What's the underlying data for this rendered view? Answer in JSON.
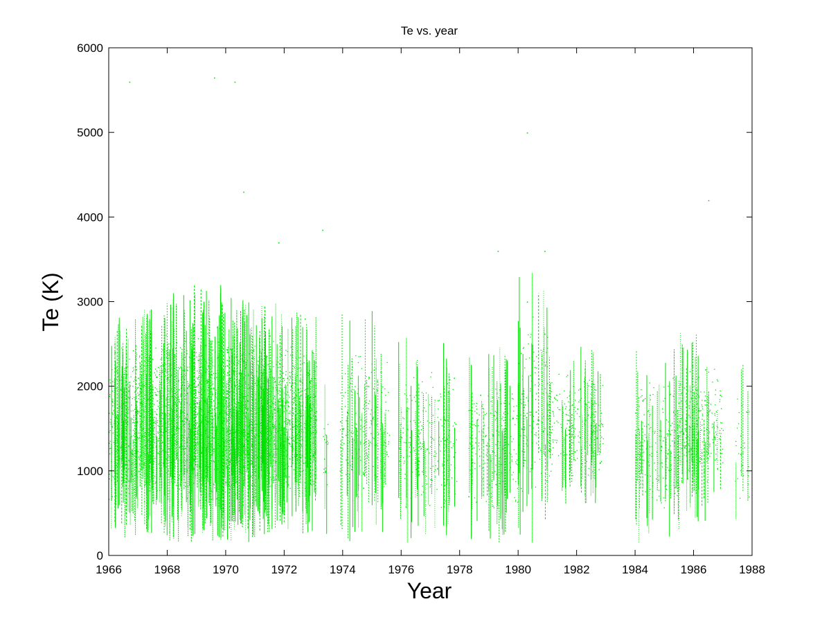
{
  "chart_data": {
    "type": "scatter",
    "title": "Te vs. year",
    "xlabel": "Year",
    "ylabel": "Te (K)",
    "xlim": [
      1966,
      1988
    ],
    "ylim": [
      0,
      6000
    ],
    "xticks": [
      "1966",
      "1968",
      "1970",
      "1972",
      "1974",
      "1976",
      "1978",
      "1980",
      "1982",
      "1984",
      "1986",
      "1988"
    ],
    "yticks": [
      "0",
      "1000",
      "2000",
      "3000",
      "4000",
      "5000",
      "6000"
    ],
    "grid": false,
    "legend": "none",
    "marker_color": "#00e000",
    "series": [
      {
        "values": [
          [
            1966.2,
            2400
          ],
          [
            1966.5,
            1800
          ],
          [
            1966.8,
            1200
          ],
          [
            1967.0,
            2100
          ],
          [
            1967.3,
            1500
          ],
          [
            1967.6,
            1900
          ],
          [
            1967.9,
            1000
          ],
          [
            1968.2,
            2200
          ],
          [
            1968.5,
            1600
          ],
          [
            1968.8,
            2500
          ],
          [
            1969.1,
            900
          ],
          [
            1969.4,
            1700
          ],
          [
            1969.7,
            2700
          ],
          [
            1970.0,
            1300
          ],
          [
            1970.3,
            2000
          ],
          [
            1970.6,
            2300
          ],
          [
            1970.9,
            1100
          ],
          [
            1971.2,
            1800
          ],
          [
            1971.5,
            2600
          ],
          [
            1971.8,
            1400
          ],
          [
            1972.1,
            2100
          ],
          [
            1972.4,
            1200
          ],
          [
            1972.7,
            2800
          ],
          [
            1973.0,
            1600
          ],
          [
            1973.4,
            1000
          ],
          [
            1974.0,
            1500
          ],
          [
            1974.3,
            2300
          ],
          [
            1974.7,
            800
          ],
          [
            1975.0,
            1400
          ],
          [
            1975.5,
            1200
          ],
          [
            1976.0,
            1400
          ],
          [
            1976.5,
            1900
          ],
          [
            1977.0,
            900
          ],
          [
            1977.5,
            1600
          ],
          [
            1977.8,
            2100
          ],
          [
            1978.3,
            700
          ],
          [
            1978.7,
            1900
          ],
          [
            1979.0,
            1300
          ],
          [
            1979.4,
            1800
          ],
          [
            1979.7,
            1100
          ],
          [
            1980.2,
            1500
          ],
          [
            1980.3,
            3000
          ],
          [
            1980.6,
            1700
          ],
          [
            1980.9,
            1200
          ],
          [
            1981.3,
            1900
          ],
          [
            1981.7,
            1600
          ],
          [
            1982.1,
            1400
          ],
          [
            1982.5,
            1800
          ],
          [
            1982.8,
            1100
          ],
          [
            1984.1,
            1500
          ],
          [
            1984.5,
            1900
          ],
          [
            1984.9,
            1100
          ],
          [
            1985.3,
            1700
          ],
          [
            1985.7,
            1300
          ],
          [
            1986.1,
            1600
          ],
          [
            1986.4,
            2200
          ],
          [
            1986.7,
            1400
          ],
          [
            1986.9,
            1900
          ],
          [
            1987.6,
            1200
          ],
          [
            1987.8,
            1700
          ],
          [
            1966.7,
            5600
          ],
          [
            1969.6,
            5650
          ],
          [
            1970.3,
            5600
          ],
          [
            1970.6,
            4300
          ],
          [
            1980.3,
            5000
          ],
          [
            1986.5,
            4200
          ],
          [
            1973.3,
            3850
          ],
          [
            1971.8,
            3700
          ],
          [
            1979.3,
            3600
          ],
          [
            1980.9,
            3600
          ]
        ]
      }
    ],
    "bands": [
      {
        "x0": 1966.0,
        "x1": 1966.9,
        "low": 200,
        "high": 2900,
        "density": 1.0
      },
      {
        "x0": 1966.9,
        "x1": 1967.8,
        "low": 200,
        "high": 3000,
        "density": 1.2
      },
      {
        "x0": 1967.8,
        "x1": 1968.9,
        "low": 150,
        "high": 3100,
        "density": 1.4
      },
      {
        "x0": 1968.9,
        "x1": 1969.9,
        "low": 150,
        "high": 3200,
        "density": 1.6
      },
      {
        "x0": 1969.9,
        "x1": 1970.9,
        "low": 150,
        "high": 3100,
        "density": 1.8
      },
      {
        "x0": 1970.9,
        "x1": 1971.9,
        "low": 200,
        "high": 3000,
        "density": 1.5
      },
      {
        "x0": 1971.9,
        "x1": 1973.1,
        "low": 250,
        "high": 2950,
        "density": 1.3
      },
      {
        "x0": 1973.3,
        "x1": 1973.5,
        "low": 250,
        "high": 2100,
        "density": 0.3
      },
      {
        "x0": 1973.9,
        "x1": 1975.6,
        "low": 150,
        "high": 2900,
        "density": 0.45
      },
      {
        "x0": 1975.9,
        "x1": 1977.9,
        "low": 150,
        "high": 2600,
        "density": 0.4
      },
      {
        "x0": 1978.3,
        "x1": 1980.0,
        "low": 150,
        "high": 2500,
        "density": 0.45
      },
      {
        "x0": 1980.0,
        "x1": 1981.0,
        "low": 150,
        "high": 3400,
        "density": 0.5
      },
      {
        "x0": 1981.0,
        "x1": 1982.9,
        "low": 600,
        "high": 2500,
        "density": 0.45
      },
      {
        "x0": 1984.0,
        "x1": 1985.5,
        "low": 150,
        "high": 2500,
        "density": 0.45
      },
      {
        "x0": 1985.5,
        "x1": 1987.0,
        "low": 400,
        "high": 2700,
        "density": 0.55
      },
      {
        "x0": 1987.4,
        "x1": 1987.9,
        "low": 150,
        "high": 2400,
        "density": 0.2
      }
    ]
  }
}
